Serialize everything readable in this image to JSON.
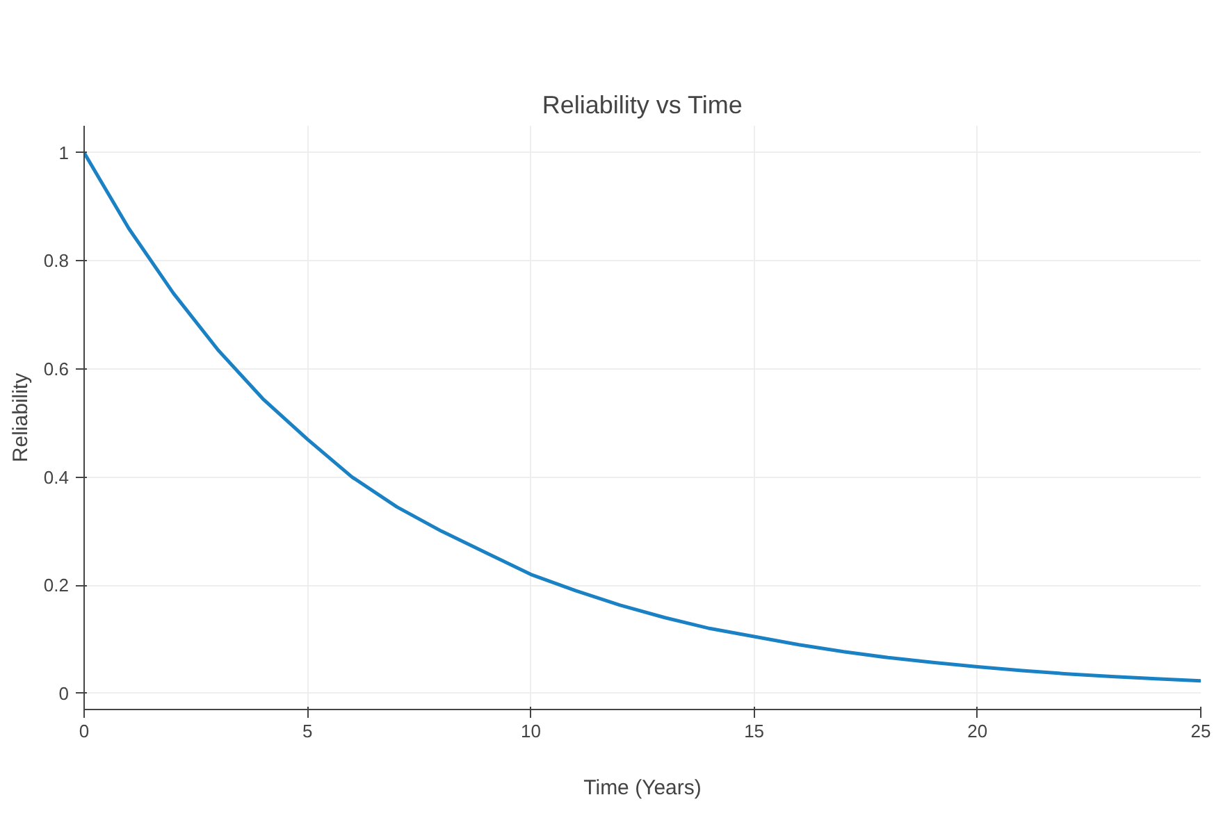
{
  "chart_data": {
    "type": "line",
    "title": "Reliability vs Time",
    "xlabel": "Time (Years)",
    "ylabel": "Reliability",
    "x": [
      0,
      1,
      2,
      3,
      4,
      5,
      6,
      7,
      8,
      9,
      10,
      11,
      12,
      13,
      14,
      15,
      16,
      17,
      18,
      19,
      20,
      21,
      22,
      23,
      24,
      25
    ],
    "series": [
      {
        "color": "#1a82c4",
        "values": [
          1,
          0.86,
          0.74,
          0.635,
          0.545,
          0.47,
          0.4,
          0.345,
          0.3,
          0.26,
          0.22,
          0.19,
          0.163,
          0.14,
          0.12,
          0.105,
          0.09,
          0.077,
          0.066,
          0.057,
          0.049,
          0.042,
          0.036,
          0.031,
          0.027,
          0.023
        ]
      }
    ],
    "xlim": [
      0,
      25
    ],
    "ylim": [
      -0.03,
      1.05
    ],
    "xticks": [
      0,
      5,
      10,
      15,
      20,
      25
    ],
    "yticks": [
      0,
      0.2,
      0.4,
      0.6,
      0.8,
      1
    ],
    "grid": true,
    "marker": "none",
    "line_style": "solid"
  }
}
